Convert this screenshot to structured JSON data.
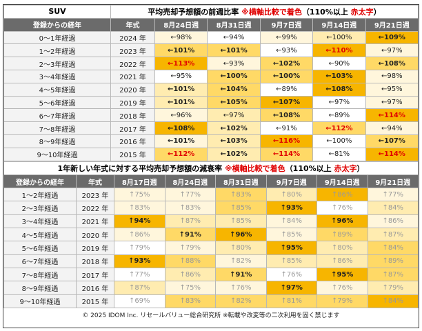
{
  "palette_note_free": null,
  "top": {
    "label": "SUV",
    "title": [
      {
        "t": "平均売却予想額の前週比率 "
      },
      {
        "t": "※横軸比較で着色",
        "color": "#e00000"
      },
      {
        "t": "（110%以上 "
      },
      {
        "t": "赤太字",
        "color": "#e00000"
      },
      {
        "t": "）"
      }
    ],
    "headers": [
      "登録からの経年",
      "年式",
      "8月24日週",
      "8月31日週",
      "9月7日週",
      "9月14日週",
      "9月21日週"
    ],
    "rows": [
      {
        "period": "0〜1年経過",
        "year": "2024 年",
        "cells": [
          {
            "t": "←98%",
            "bg": "#fff6dc"
          },
          {
            "t": "←94%",
            "bg": "#ffffff"
          },
          {
            "t": "←99%",
            "bg": "#fff6dc"
          },
          {
            "t": "←100%",
            "bg": "#ffecb0"
          },
          {
            "t": "←109%",
            "bg": "#f7b500",
            "b": true
          }
        ]
      },
      {
        "period": "1〜2年経過",
        "year": "2023 年",
        "cells": [
          {
            "t": "←101%",
            "bg": "#ffd966",
            "b": true
          },
          {
            "t": "←101%",
            "bg": "#ffd966",
            "b": true
          },
          {
            "t": "←93%",
            "bg": "#ffffff"
          },
          {
            "t": "←110%",
            "bg": "#f7b500",
            "b": true,
            "red": true
          },
          {
            "t": "←97%",
            "bg": "#fff6dc"
          }
        ]
      },
      {
        "period": "2〜3年経過",
        "year": "2022 年",
        "cells": [
          {
            "t": "←113%",
            "bg": "#f7b500",
            "b": true,
            "red": true
          },
          {
            "t": "←93%",
            "bg": "#fff6dc"
          },
          {
            "t": "←102%",
            "bg": "#ffd966",
            "b": true
          },
          {
            "t": "←90%",
            "bg": "#ffffff"
          },
          {
            "t": "←108%",
            "bg": "#ffd966",
            "b": true
          }
        ]
      },
      {
        "period": "3〜4年経過",
        "year": "2021 年",
        "cells": [
          {
            "t": "←95%",
            "bg": "#ffffff"
          },
          {
            "t": "←100%",
            "bg": "#ffd966",
            "b": true
          },
          {
            "t": "←100%",
            "bg": "#ffd966",
            "b": true
          },
          {
            "t": "←103%",
            "bg": "#f7b500",
            "b": true
          },
          {
            "t": "←98%",
            "bg": "#fff6dc"
          }
        ]
      },
      {
        "period": "4〜5年経過",
        "year": "2020 年",
        "cells": [
          {
            "t": "←101%",
            "bg": "#ffecb0",
            "b": true
          },
          {
            "t": "←104%",
            "bg": "#ffd966",
            "b": true
          },
          {
            "t": "←89%",
            "bg": "#ffffff"
          },
          {
            "t": "←108%",
            "bg": "#f7b500",
            "b": true
          },
          {
            "t": "←95%",
            "bg": "#fff6dc"
          }
        ]
      },
      {
        "period": "5〜6年経過",
        "year": "2019 年",
        "cells": [
          {
            "t": "←101%",
            "bg": "#ffecb0",
            "b": true
          },
          {
            "t": "←105%",
            "bg": "#ffd966",
            "b": true
          },
          {
            "t": "←107%",
            "bg": "#f7b500",
            "b": true
          },
          {
            "t": "←97%",
            "bg": "#ffffff"
          },
          {
            "t": "←97%",
            "bg": "#fff6dc"
          }
        ]
      },
      {
        "period": "6〜7年経過",
        "year": "2018 年",
        "cells": [
          {
            "t": "←96%",
            "bg": "#fff6dc"
          },
          {
            "t": "←97%",
            "bg": "#ffecb0"
          },
          {
            "t": "←108%",
            "bg": "#ffd966",
            "b": true
          },
          {
            "t": "←89%",
            "bg": "#ffffff"
          },
          {
            "t": "←114%",
            "bg": "#f7b500",
            "b": true,
            "red": true
          }
        ]
      },
      {
        "period": "7〜8年経過",
        "year": "2017 年",
        "cells": [
          {
            "t": "←108%",
            "bg": "#f7b500",
            "b": true
          },
          {
            "t": "←102%",
            "bg": "#ffecb0",
            "b": true
          },
          {
            "t": "←91%",
            "bg": "#ffffff"
          },
          {
            "t": "←112%",
            "bg": "#ffd966",
            "b": true,
            "red": true
          },
          {
            "t": "←94%",
            "bg": "#fff6dc"
          }
        ]
      },
      {
        "period": "8〜9年経過",
        "year": "2016 年",
        "cells": [
          {
            "t": "←101%",
            "bg": "#fff6dc",
            "b": true
          },
          {
            "t": "←103%",
            "bg": "#ffecb0",
            "b": true
          },
          {
            "t": "←116%",
            "bg": "#f7b500",
            "b": true,
            "red": true
          },
          {
            "t": "←100%",
            "bg": "#ffffff"
          },
          {
            "t": "←107%",
            "bg": "#ffd966",
            "b": true
          }
        ]
      },
      {
        "period": "9〜10年経過",
        "year": "2015 年",
        "cells": [
          {
            "t": "←112%",
            "bg": "#ffd966",
            "b": true,
            "red": true
          },
          {
            "t": "←102%",
            "bg": "#ffecb0",
            "b": true
          },
          {
            "t": "←114%",
            "bg": "#ffd966",
            "b": true,
            "red": true
          },
          {
            "t": "←81%",
            "bg": "#ffffff"
          },
          {
            "t": "←114%",
            "bg": "#f7b500",
            "b": true,
            "red": true
          }
        ]
      }
    ]
  },
  "bottom": {
    "title": [
      {
        "t": "1年新しい年式に対する平均売却予想額の減衰率 "
      },
      {
        "t": "※横軸比較で着色",
        "color": "#e00000"
      },
      {
        "t": "（110%以上 "
      },
      {
        "t": "赤太字",
        "color": "#e00000"
      },
      {
        "t": "）"
      }
    ],
    "headers": [
      "登録からの経年",
      "年式",
      "8月17日週",
      "8月24日週",
      "8月31日週",
      "9月7日週",
      "9月14日週",
      "9月21日週"
    ],
    "rows": [
      {
        "period": "1〜2年経過",
        "year": "2023 年",
        "cells": [
          {
            "t": "↑75%",
            "bg": "#fff6dc"
          },
          {
            "t": "↑77%",
            "bg": "#fff6dc"
          },
          {
            "t": "↑83%",
            "bg": "#ffd966"
          },
          {
            "t": "↑80%",
            "bg": "#ffecb0"
          },
          {
            "t": "↑86%",
            "bg": "#f7b500"
          },
          {
            "t": "↑77%",
            "bg": "#fff6dc"
          }
        ]
      },
      {
        "period": "2〜3年経過",
        "year": "2022 年",
        "cells": [
          {
            "t": "↑83%",
            "bg": "#fff6dc"
          },
          {
            "t": "↑83%",
            "bg": "#fff6dc"
          },
          {
            "t": "↑85%",
            "bg": "#ffd966"
          },
          {
            "t": "↑93%",
            "bg": "#f7b500",
            "b": true
          },
          {
            "t": "↑76%",
            "bg": "#ffffff"
          },
          {
            "t": "↑84%",
            "bg": "#ffecb0"
          }
        ]
      },
      {
        "period": "3〜4年経過",
        "year": "2021 年",
        "cells": [
          {
            "t": "↑94%",
            "bg": "#f7b500",
            "b": true
          },
          {
            "t": "↑87%",
            "bg": "#ffecb0"
          },
          {
            "t": "↑85%",
            "bg": "#ffecb0"
          },
          {
            "t": "↑84%",
            "bg": "#fff6dc"
          },
          {
            "t": "↑96%",
            "bg": "#f7b500",
            "b": true
          },
          {
            "t": "↑86%",
            "bg": "#fff6dc"
          }
        ]
      },
      {
        "period": "4〜5年経過",
        "year": "2020 年",
        "cells": [
          {
            "t": "↑86%",
            "bg": "#fff6dc"
          },
          {
            "t": "↑91%",
            "bg": "#ffd966",
            "b": true
          },
          {
            "t": "↑96%",
            "bg": "#f7b500",
            "b": true
          },
          {
            "t": "↑85%",
            "bg": "#fff6dc"
          },
          {
            "t": "↑89%",
            "bg": "#ffd966"
          },
          {
            "t": "↑87%",
            "bg": "#ffecb0"
          }
        ]
      },
      {
        "period": "5〜6年経過",
        "year": "2019 年",
        "cells": [
          {
            "t": "↑79%",
            "bg": "#ffffff"
          },
          {
            "t": "↑79%",
            "bg": "#fff6dc"
          },
          {
            "t": "↑80%",
            "bg": "#ffecb0"
          },
          {
            "t": "↑95%",
            "bg": "#f7b500",
            "b": true
          },
          {
            "t": "↑80%",
            "bg": "#ffecb0"
          },
          {
            "t": "↑84%",
            "bg": "#ffd966"
          }
        ]
      },
      {
        "period": "6〜7年経過",
        "year": "2018 年",
        "cells": [
          {
            "t": "↑93%",
            "bg": "#f7b500",
            "b": true
          },
          {
            "t": "↑88%",
            "bg": "#ffd966"
          },
          {
            "t": "↑82%",
            "bg": "#fff6dc"
          },
          {
            "t": "↑85%",
            "bg": "#ffecb0"
          },
          {
            "t": "↑86%",
            "bg": "#ffecb0"
          },
          {
            "t": "↑89%",
            "bg": "#ffd966"
          }
        ]
      },
      {
        "period": "7〜8年経過",
        "year": "2017 年",
        "cells": [
          {
            "t": "↑77%",
            "bg": "#ffffff"
          },
          {
            "t": "↑86%",
            "bg": "#ffecb0"
          },
          {
            "t": "↑91%",
            "bg": "#ffd966",
            "b": true
          },
          {
            "t": "↑76%",
            "bg": "#ffffff"
          },
          {
            "t": "↑95%",
            "bg": "#f7b500",
            "b": true
          },
          {
            "t": "↑87%",
            "bg": "#ffd966"
          }
        ]
      },
      {
        "period": "8〜9年経過",
        "year": "2016 年",
        "cells": [
          {
            "t": "↑87%",
            "bg": "#ffecb0"
          },
          {
            "t": "↑75%",
            "bg": "#fff6dc"
          },
          {
            "t": "↑76%",
            "bg": "#fff6dc"
          },
          {
            "t": "↑97%",
            "bg": "#f7b500",
            "b": true
          },
          {
            "t": "↑76%",
            "bg": "#fff6dc"
          },
          {
            "t": "↑79%",
            "bg": "#ffecb0"
          }
        ]
      },
      {
        "period": "9〜10年経過",
        "year": "2015 年",
        "cells": [
          {
            "t": "↑69%",
            "bg": "#ffffff"
          },
          {
            "t": "↑83%",
            "bg": "#ffd966"
          },
          {
            "t": "↑82%",
            "bg": "#ffd966"
          },
          {
            "t": "↑81%",
            "bg": "#ffd966"
          },
          {
            "t": "↑79%",
            "bg": "#ffd966"
          },
          {
            "t": "↑84%",
            "bg": "#f7b500"
          }
        ]
      }
    ]
  },
  "footer": "© 2025 IDOM Inc. リセールバリュー総合研究所 ※転載や改変等の二次利用を固く禁じます"
}
